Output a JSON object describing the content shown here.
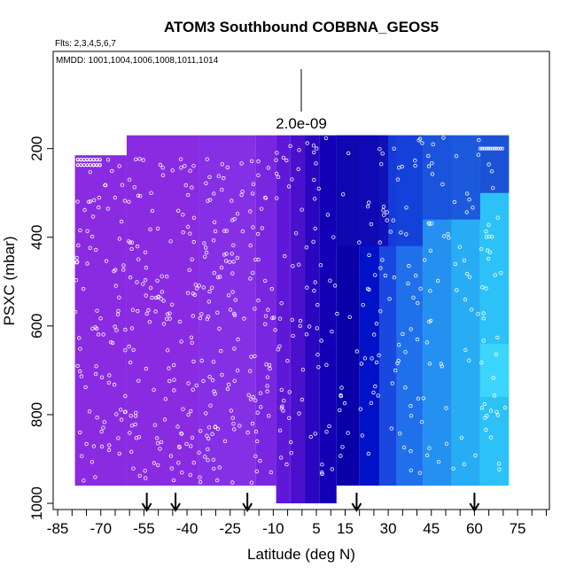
{
  "chart_data": {
    "type": "heatmap",
    "title": "ATOM3 Southbound COBBNA_GEOS5",
    "subtitle_flights": "Flts: 2,3,4,5,6,7",
    "subtitle_dates": "MMDD: 1001,1004,1006,1008,1011,1014",
    "xlabel": "Latitude (deg N)",
    "ylabel": "PSXC (mbar)",
    "xlim": [
      -85,
      85
    ],
    "ylim": [
      1000,
      0
    ],
    "x_ticks": [
      -85,
      -70,
      -55,
      -40,
      -25,
      -10,
      5,
      15,
      30,
      45,
      60,
      75
    ],
    "x_tick_labels": [
      "-85",
      "-70",
      "-55",
      "-40",
      "-25",
      "-10",
      "5",
      "15",
      "30",
      "45",
      "60",
      "75"
    ],
    "y_ticks": [
      200,
      400,
      600,
      800,
      1000
    ],
    "y_tick_labels": [
      "200",
      "400",
      "600",
      "800",
      "1000"
    ],
    "scale_label": "2.0e-09",
    "arrow_latitudes": [
      -54,
      -44,
      -19,
      19,
      60
    ],
    "bands": [
      {
        "lat0": -79,
        "lat1": -61,
        "p_top": 215,
        "p_bot": 960,
        "color": "#8a2be2"
      },
      {
        "lat0": -61,
        "lat1": -36,
        "p_top": 170,
        "p_bot": 960,
        "color": "#8a2be2"
      },
      {
        "lat0": -36,
        "lat1": -16,
        "p_top": 170,
        "p_bot": 960,
        "color": "#8630e6"
      },
      {
        "lat0": -16,
        "lat1": -9,
        "p_top": 170,
        "p_bot": 960,
        "color": "#7a26e0"
      },
      {
        "lat0": -9,
        "lat1": -4,
        "p_top": 170,
        "p_bot": 1000,
        "color": "#6018d8"
      },
      {
        "lat0": -4,
        "lat1": 1,
        "p_top": 170,
        "p_bot": 1000,
        "color": "#4a10cc"
      },
      {
        "lat0": 1,
        "lat1": 6,
        "p_top": 170,
        "p_bot": 1000,
        "color": "#2a06c0"
      },
      {
        "lat0": 6,
        "lat1": 12,
        "p_top": 170,
        "p_bot": 1000,
        "color": "#1200b4"
      },
      {
        "lat0": 12,
        "lat1": 20,
        "p_top": 170,
        "p_bot": 960,
        "color": "#0a00a8"
      },
      {
        "lat0": 20,
        "lat1": 27,
        "p_top": 170,
        "p_bot": 960,
        "color": "#0012c8"
      },
      {
        "lat0": 27,
        "lat1": 33,
        "p_top": 170,
        "p_bot": 960,
        "color": "#1848e0"
      },
      {
        "lat0": 33,
        "lat1": 42,
        "p_top": 170,
        "p_bot": 960,
        "color": "#2070ec"
      },
      {
        "lat0": 42,
        "lat1": 52,
        "p_top": 170,
        "p_bot": 960,
        "color": "#2490f0"
      },
      {
        "lat0": 52,
        "lat1": 62,
        "p_top": 170,
        "p_bot": 960,
        "color": "#28acf4"
      },
      {
        "lat0": 62,
        "lat1": 72,
        "p_top": 170,
        "p_bot": 960,
        "color": "#2cc2f8"
      }
    ],
    "upper_overlays": [
      {
        "lat0": 12,
        "lat1": 30,
        "p_top": 170,
        "p_bot": 420,
        "color": "#1008b0"
      },
      {
        "lat0": 30,
        "lat1": 42,
        "p_top": 170,
        "p_bot": 420,
        "color": "#1438d8"
      },
      {
        "lat0": 42,
        "lat1": 62,
        "p_top": 170,
        "p_bot": 360,
        "color": "#1a4ad8"
      },
      {
        "lat0": 62,
        "lat1": 72,
        "p_top": 170,
        "p_bot": 300,
        "color": "#1a3ed0"
      },
      {
        "lat0": 62,
        "lat1": 72,
        "p_top": 640,
        "p_bot": 760,
        "color": "#40d8fc"
      }
    ],
    "sample_point_counts": {
      "lat_-80_to_-10": 380,
      "lat_-10_to_72": 260
    }
  }
}
